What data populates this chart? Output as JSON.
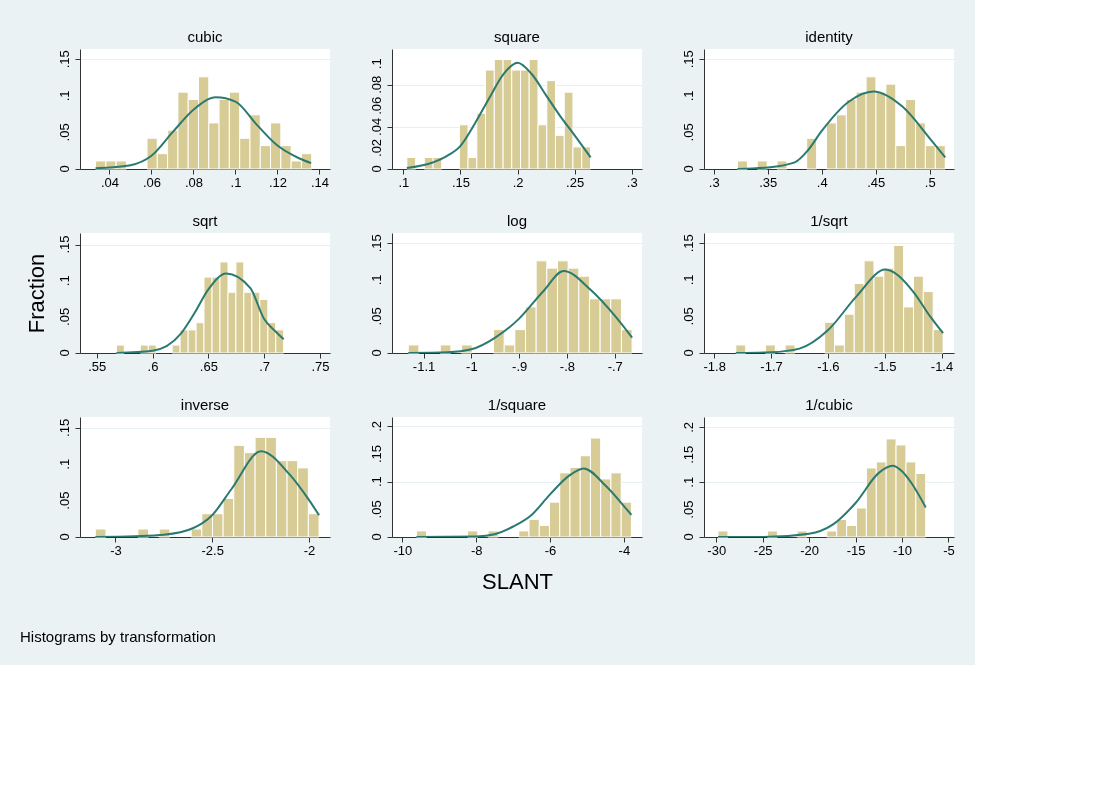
{
  "chart_data": [
    {
      "type": "histogram",
      "title": "cubic",
      "color": "#d8cc96",
      "grid": "y",
      "legend": false,
      "bins": [
        0.0334,
        0.0383,
        0.0432,
        0.0481,
        0.053,
        0.0579,
        0.0628,
        0.0677,
        0.0726,
        0.0775,
        0.0824,
        0.0873,
        0.0922,
        0.0971,
        0.102,
        0.1069,
        0.1118,
        0.1167,
        0.1216,
        0.1265,
        0.1314,
        0.1363
      ],
      "values": [
        0.011,
        0.011,
        0.011,
        0,
        0,
        0.042,
        0.021,
        0.053,
        0.105,
        0.095,
        0.126,
        0.063,
        0.095,
        0.105,
        0.042,
        0.074,
        0.032,
        0.063,
        0.032,
        0.011,
        0.021
      ],
      "series": [
        {
          "type": "line",
          "color": "#2b7a72",
          "x": [
            0.0334,
            0.04,
            0.05,
            0.06,
            0.07,
            0.08,
            0.0907,
            0.1,
            0.11,
            0.12,
            0.13,
            0.136
          ],
          "values": [
            0.001,
            0.002,
            0.005,
            0.018,
            0.05,
            0.081,
            0.098,
            0.092,
            0.061,
            0.032,
            0.015,
            0.008
          ]
        }
      ],
      "xlim": [
        0.026,
        0.145
      ],
      "xticks": [
        {
          "value": 0.04,
          "label": ".04"
        },
        {
          "value": 0.06,
          "label": ".06"
        },
        {
          "value": 0.08,
          "label": ".08"
        },
        {
          "value": 0.1,
          "label": ".1"
        },
        {
          "value": 0.12,
          "label": ".12"
        },
        {
          "value": 0.14,
          "label": ".14"
        }
      ],
      "ylim": [
        0,
        0.164
      ],
      "yticks": [
        0,
        {
          "value": 0.05,
          "label": ".05"
        },
        {
          "value": 0.1,
          "label": ".1"
        },
        {
          "value": 0.15,
          "label": ".15"
        }
      ]
    },
    {
      "type": "histogram",
      "title": "square",
      "color": "#d8cc96",
      "grid": "y",
      "legend": false,
      "bins": [
        0.103,
        0.1107,
        0.1183,
        0.126,
        0.1336,
        0.1413,
        0.149,
        0.1566,
        0.1643,
        0.1719,
        0.1796,
        0.1873,
        0.1949,
        0.2026,
        0.2102,
        0.2179,
        0.2256,
        0.2332,
        0.2409,
        0.2485,
        0.2562,
        0.2639
      ],
      "values": [
        0.011,
        0,
        0.011,
        0.011,
        0,
        0,
        0.042,
        0.011,
        0.053,
        0.094,
        0.104,
        0.104,
        0.094,
        0.094,
        0.104,
        0.042,
        0.084,
        0.032,
        0.073,
        0.021,
        0.021
      ],
      "series": [
        {
          "type": "line",
          "color": "#2b7a72",
          "x": [
            0.103,
            0.125,
            0.1375,
            0.15,
            0.1625,
            0.175,
            0.1875,
            0.2,
            0.2125,
            0.225,
            0.2375,
            0.25,
            0.264
          ],
          "values": [
            0.001,
            0.006,
            0.012,
            0.022,
            0.043,
            0.067,
            0.09,
            0.101,
            0.09,
            0.07,
            0.05,
            0.032,
            0.011
          ]
        }
      ],
      "xlim": [
        0.09,
        0.309
      ],
      "xticks": [
        {
          "value": 0.1,
          "label": ".1"
        },
        {
          "value": 0.15,
          "label": ".15"
        },
        {
          "value": 0.2,
          "label": ".2"
        },
        {
          "value": 0.25,
          "label": ".25"
        },
        {
          "value": 0.3,
          "label": ".3"
        }
      ],
      "ylim": [
        0,
        0.114
      ],
      "yticks": [
        0,
        {
          "value": 0.02,
          "label": ".02"
        },
        {
          "value": 0.04,
          "label": ".04"
        },
        {
          "value": 0.06,
          "label": ".06"
        },
        {
          "value": 0.08,
          "label": ".08"
        },
        {
          "value": 0.1,
          "label": ".1"
        }
      ]
    },
    {
      "type": "histogram",
      "title": "identity",
      "color": "#d8cc96",
      "grid": "y",
      "legend": false,
      "bins": [
        0.322,
        0.3312,
        0.3403,
        0.3495,
        0.3586,
        0.3678,
        0.377,
        0.3861,
        0.3953,
        0.4044,
        0.4136,
        0.4228,
        0.4319,
        0.4411,
        0.4502,
        0.4594,
        0.4686,
        0.4777,
        0.4869,
        0.496,
        0.5052,
        0.5144
      ],
      "values": [
        0.011,
        0,
        0.011,
        0,
        0.011,
        0,
        0,
        0.042,
        0,
        0.063,
        0.074,
        0.095,
        0.105,
        0.126,
        0.105,
        0.116,
        0.032,
        0.095,
        0.063,
        0.032,
        0.032
      ],
      "series": [
        {
          "type": "line",
          "color": "#2b7a72",
          "x": [
            0.322,
            0.35,
            0.375,
            0.3875,
            0.4,
            0.425,
            0.448,
            0.475,
            0.5,
            0.5144
          ],
          "values": [
            0,
            0.002,
            0.009,
            0.026,
            0.052,
            0.092,
            0.106,
            0.085,
            0.042,
            0.016
          ]
        }
      ],
      "xlim": [
        0.291,
        0.5225
      ],
      "xticks": [
        {
          "value": 0.3,
          "label": ".3"
        },
        {
          "value": 0.35,
          "label": ".35"
        },
        {
          "value": 0.4,
          "label": ".4"
        },
        {
          "value": 0.45,
          "label": ".45"
        },
        {
          "value": 0.5,
          "label": ".5"
        }
      ],
      "ylim": [
        0,
        0.164
      ],
      "yticks": [
        0,
        {
          "value": 0.05,
          "label": ".05"
        },
        {
          "value": 0.1,
          "label": ".1"
        },
        {
          "value": 0.15,
          "label": ".15"
        }
      ]
    },
    {
      "type": "histogram",
      "title": "sqrt",
      "ylabel": "Fraction",
      "color": "#d8cc96",
      "grid": "y",
      "legend": false,
      "bins": [
        0.5676,
        0.5747,
        0.5819,
        0.589,
        0.5962,
        0.6033,
        0.6104,
        0.6176,
        0.6247,
        0.6319,
        0.639,
        0.6461,
        0.6533,
        0.6604,
        0.6676,
        0.6747,
        0.6818,
        0.689,
        0.6961,
        0.7033,
        0.7104,
        0.7175
      ],
      "values": [
        0.011,
        0,
        0,
        0.011,
        0.011,
        0,
        0,
        0.011,
        0.032,
        0.032,
        0.042,
        0.105,
        0.105,
        0.126,
        0.084,
        0.126,
        0.084,
        0.084,
        0.074,
        0.042,
        0.032
      ],
      "series": [
        {
          "type": "line",
          "color": "#2b7a72",
          "x": [
            0.5676,
            0.6,
            0.625,
            0.6375,
            0.65,
            0.666,
            0.6875,
            0.7,
            0.71,
            0.7175
          ],
          "values": [
            0,
            0.003,
            0.026,
            0.055,
            0.088,
            0.11,
            0.09,
            0.047,
            0.03,
            0.019
          ]
        }
      ],
      "xlim": [
        0.535,
        0.759
      ],
      "xticks": [
        {
          "value": 0.55,
          "label": ".55"
        },
        {
          "value": 0.6,
          "label": ".6"
        },
        {
          "value": 0.65,
          "label": ".65"
        },
        {
          "value": 0.7,
          "label": ".7"
        },
        {
          "value": 0.75,
          "label": ".75"
        }
      ],
      "ylim": [
        0,
        0.166
      ],
      "yticks": [
        0,
        {
          "value": 0.05,
          "label": ".05"
        },
        {
          "value": 0.1,
          "label": ".1"
        },
        {
          "value": 0.15,
          "label": ".15"
        }
      ]
    },
    {
      "type": "histogram",
      "title": "log",
      "color": "#d8cc96",
      "grid": "y",
      "legend": false,
      "bins": [
        -1.132,
        -1.1097,
        -1.0874,
        -1.0651,
        -1.0428,
        -1.0205,
        -0.9982,
        -0.9759,
        -0.9536,
        -0.9313,
        -0.909,
        -0.8867,
        -0.8644,
        -0.8421,
        -0.8198,
        -0.7975,
        -0.7752,
        -0.7529,
        -0.7306,
        -0.7083,
        -0.686,
        -0.6637
      ],
      "values": [
        0.011,
        0,
        0,
        0.011,
        0,
        0.011,
        0,
        0,
        0.032,
        0.011,
        0.032,
        0.063,
        0.126,
        0.116,
        0.126,
        0.116,
        0.105,
        0.074,
        0.074,
        0.074,
        0.032
      ],
      "series": [
        {
          "type": "line",
          "color": "#2b7a72",
          "x": [
            -1.132,
            -1.05,
            -1,
            -0.95,
            -0.9,
            -0.85,
            -0.807,
            -0.75,
            -0.7,
            -0.6637
          ],
          "values": [
            0,
            0.001,
            0.005,
            0.021,
            0.047,
            0.084,
            0.112,
            0.086,
            0.051,
            0.021
          ]
        }
      ],
      "xlim": [
        -1.166,
        -0.643
      ],
      "xticks": [
        -1.1,
        -1,
        {
          "value": -0.9,
          "label": "-.9"
        },
        {
          "value": -0.8,
          "label": "-.8"
        },
        {
          "value": -0.7,
          "label": "-.7"
        }
      ],
      "ylim": [
        0,
        0.164
      ],
      "yticks": [
        0,
        {
          "value": 0.05,
          "label": ".05"
        },
        {
          "value": 0.1,
          "label": ".1"
        },
        {
          "value": 0.15,
          "label": ".15"
        }
      ]
    },
    {
      "type": "histogram",
      "title": "1/sqrt",
      "color": "#d8cc96",
      "grid": "y",
      "legend": false,
      "bins": [
        -1.762,
        -1.7446,
        -1.7273,
        -1.7099,
        -1.6925,
        -1.6752,
        -1.6578,
        -1.6404,
        -1.623,
        -1.6057,
        -1.5883,
        -1.5709,
        -1.5536,
        -1.5362,
        -1.5188,
        -1.5015,
        -1.4841,
        -1.4667,
        -1.4493,
        -1.432,
        -1.4146,
        -1.3972
      ],
      "values": [
        0.011,
        0,
        0,
        0.011,
        0,
        0.011,
        0,
        0,
        0,
        0.042,
        0.011,
        0.053,
        0.095,
        0.126,
        0.105,
        0.116,
        0.147,
        0.063,
        0.105,
        0.084,
        0.032
      ],
      "series": [
        {
          "type": "line",
          "color": "#2b7a72",
          "x": [
            -1.762,
            -1.7,
            -1.65,
            -1.6,
            -1.55,
            -1.499,
            -1.45,
            -1.42,
            -1.3972
          ],
          "values": [
            0,
            0.001,
            0.006,
            0.031,
            0.077,
            0.114,
            0.084,
            0.05,
            0.027
          ]
        }
      ],
      "xlim": [
        -1.818,
        -1.378
      ],
      "xticks": [
        -1.8,
        -1.7,
        -1.6,
        -1.5,
        -1.4
      ],
      "ylim": [
        0,
        0.164
      ],
      "yticks": [
        0,
        {
          "value": 0.05,
          "label": ".05"
        },
        {
          "value": 0.1,
          "label": ".1"
        },
        {
          "value": 0.15,
          "label": ".15"
        }
      ]
    },
    {
      "type": "histogram",
      "title": "inverse",
      "color": "#d8cc96",
      "grid": "y",
      "legend": false,
      "annotations": [
        "Histograms by transformation"
      ],
      "bins": [
        -3.104,
        -3.0489,
        -2.9939,
        -2.9388,
        -2.8838,
        -2.8287,
        -2.7736,
        -2.7186,
        -2.6635,
        -2.6085,
        -2.5534,
        -2.4983,
        -2.4433,
        -2.3882,
        -2.3332,
        -2.2781,
        -2.223,
        -2.168,
        -2.1129,
        -2.0579,
        -2.0028,
        -1.9477
      ],
      "values": [
        0.011,
        0,
        0,
        0,
        0.011,
        0,
        0.011,
        0,
        0,
        0.011,
        0.032,
        0.032,
        0.053,
        0.126,
        0.116,
        0.137,
        0.137,
        0.105,
        0.105,
        0.095,
        0.032
      ],
      "series": [
        {
          "type": "line",
          "color": "#2b7a72",
          "x": [
            -3.104,
            -2.9,
            -2.75,
            -2.6,
            -2.5,
            -2.4,
            -2.247,
            -2.1,
            -2,
            -1.9477
          ],
          "values": [
            0,
            0.001,
            0.003,
            0.012,
            0.03,
            0.066,
            0.118,
            0.086,
            0.051,
            0.03
          ]
        }
      ],
      "xlim": [
        -3.183,
        -1.891
      ],
      "xticks": [
        -3,
        -2.5,
        -2
      ],
      "ylim": [
        0,
        0.165
      ],
      "yticks": [
        0,
        {
          "value": 0.05,
          "label": ".05"
        },
        {
          "value": 0.1,
          "label": ".1"
        },
        {
          "value": 0.15,
          "label": ".15"
        }
      ]
    },
    {
      "type": "histogram",
      "title": "1/square",
      "xlabel": "SLANT",
      "color": "#d8cc96",
      "grid": "y",
      "legend": false,
      "bins": [
        -9.62,
        -9.3427,
        -9.0654,
        -8.7881,
        -8.5108,
        -8.2335,
        -7.9562,
        -7.6789,
        -7.4016,
        -7.1243,
        -6.847,
        -6.5697,
        -6.2924,
        -6.0151,
        -5.7378,
        -5.4605,
        -5.1832,
        -4.9059,
        -4.6286,
        -4.3513,
        -4.074,
        -3.7967
      ],
      "values": [
        0.011,
        0,
        0,
        0,
        0,
        0.011,
        0,
        0.011,
        0,
        0,
        0.011,
        0.032,
        0.021,
        0.063,
        0.116,
        0.126,
        0.147,
        0.179,
        0.105,
        0.116,
        0.063
      ],
      "series": [
        {
          "type": "line",
          "color": "#2b7a72",
          "x": [
            -9.62,
            -8,
            -7.5,
            -7,
            -6.5,
            -6,
            -5.5,
            -5.09,
            -4.5,
            -4,
            -3.7967
          ],
          "values": [
            0,
            0.001,
            0.005,
            0.019,
            0.04,
            0.077,
            0.11,
            0.124,
            0.093,
            0.056,
            0.04
          ]
        }
      ],
      "xlim": [
        -10.28,
        -3.51
      ],
      "xticks": [
        -10,
        -8,
        -6,
        -4
      ],
      "ylim": [
        0,
        0.217
      ],
      "yticks": [
        0,
        {
          "value": 0.05,
          "label": ".05"
        },
        {
          "value": 0.1,
          "label": ".1"
        },
        {
          "value": 0.15,
          "label": ".15"
        },
        {
          "value": 0.2,
          "label": ".2"
        }
      ]
    },
    {
      "type": "histogram",
      "title": "1/cubic",
      "color": "#d8cc96",
      "grid": "y",
      "legend": false,
      "bins": [
        -29.81,
        -28.745,
        -27.68,
        -26.615,
        -25.55,
        -24.485,
        -23.42,
        -22.355,
        -21.29,
        -20.225,
        -19.16,
        -18.095,
        -17.03,
        -15.965,
        -14.9,
        -13.835,
        -12.77,
        -11.705,
        -10.64,
        -9.575,
        -8.51,
        -7.445
      ],
      "values": [
        0.011,
        0,
        0,
        0,
        0,
        0.011,
        0,
        0,
        0.011,
        0,
        0,
        0.011,
        0.032,
        0.021,
        0.053,
        0.126,
        0.137,
        0.179,
        0.168,
        0.137,
        0.116
      ],
      "series": [
        {
          "type": "line",
          "color": "#2b7a72",
          "x": [
            -29.81,
            -25,
            -20,
            -17.5,
            -15,
            -12.5,
            -11.02,
            -10,
            -9,
            -7.445
          ],
          "values": [
            0,
            0,
            0.006,
            0.022,
            0.062,
            0.117,
            0.13,
            0.12,
            0.099,
            0.054
          ]
        }
      ],
      "xlim": [
        -31.32,
        -4.4
      ],
      "xticks": [
        -30,
        -25,
        -20,
        -15,
        -10,
        -5
      ],
      "ylim": [
        0,
        0.219
      ],
      "yticks": [
        0,
        {
          "value": 0.05,
          "label": ".05"
        },
        {
          "value": 0.1,
          "label": ".1"
        },
        {
          "value": 0.15,
          "label": ".15"
        },
        {
          "value": 0.2,
          "label": ".2"
        }
      ]
    }
  ]
}
